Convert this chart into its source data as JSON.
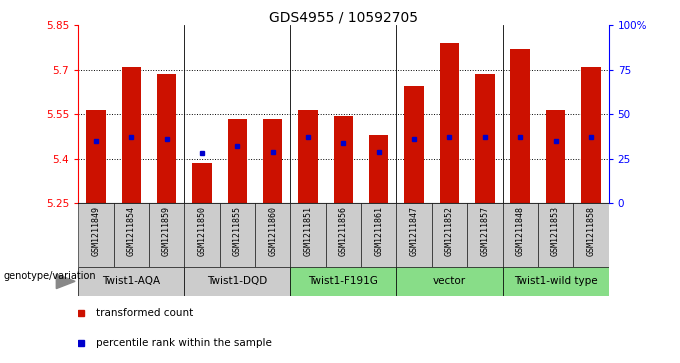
{
  "title": "GDS4955 / 10592705",
  "samples": [
    "GSM1211849",
    "GSM1211854",
    "GSM1211859",
    "GSM1211850",
    "GSM1211855",
    "GSM1211860",
    "GSM1211851",
    "GSM1211856",
    "GSM1211861",
    "GSM1211847",
    "GSM1211852",
    "GSM1211857",
    "GSM1211848",
    "GSM1211853",
    "GSM1211858"
  ],
  "red_values": [
    5.565,
    5.71,
    5.685,
    5.385,
    5.535,
    5.535,
    5.565,
    5.545,
    5.48,
    5.645,
    5.79,
    5.685,
    5.77,
    5.565,
    5.71
  ],
  "blue_pct": [
    35,
    37,
    36,
    28,
    32,
    29,
    37,
    34,
    29,
    36,
    37,
    37,
    37,
    35,
    37
  ],
  "ylim_left": [
    5.25,
    5.85
  ],
  "ylim_right": [
    0,
    100
  ],
  "yticks_left": [
    5.25,
    5.4,
    5.55,
    5.7,
    5.85
  ],
  "ytick_labels_left": [
    "5.25",
    "5.4",
    "5.55",
    "5.7",
    "5.85"
  ],
  "yticks_right": [
    0,
    25,
    50,
    75,
    100
  ],
  "ytick_labels_right": [
    "0",
    "25",
    "50",
    "75",
    "100%"
  ],
  "grid_yticks": [
    5.4,
    5.55,
    5.7
  ],
  "group_boundaries": [
    3,
    6,
    9,
    12
  ],
  "groups": [
    {
      "label": "Twist1-AQA",
      "start": 0,
      "end": 3,
      "color": "#cccccc"
    },
    {
      "label": "Twist1-DQD",
      "start": 3,
      "end": 6,
      "color": "#cccccc"
    },
    {
      "label": "Twist1-F191G",
      "start": 6,
      "end": 9,
      "color": "#88dd88"
    },
    {
      "label": "vector",
      "start": 9,
      "end": 12,
      "color": "#88dd88"
    },
    {
      "label": "Twist1-wild type",
      "start": 12,
      "end": 15,
      "color": "#88dd88"
    }
  ],
  "sample_cell_color": "#cccccc",
  "bar_color": "#cc1100",
  "marker_color": "#0000cc",
  "genotype_label": "genotype/variation",
  "legend_items": [
    {
      "color": "#cc1100",
      "label": "transformed count"
    },
    {
      "color": "#0000cc",
      "label": "percentile rank within the sample"
    }
  ]
}
